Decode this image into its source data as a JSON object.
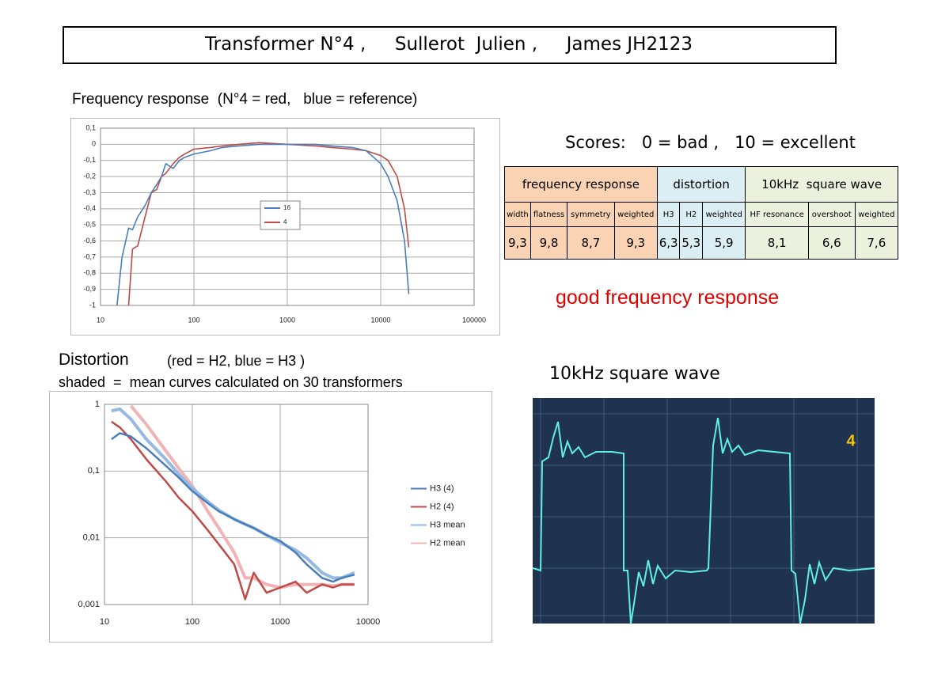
{
  "title": "Transformer N°4 ,     Sullerot  Julien ,     James JH2123",
  "chart_data": [
    {
      "type": "line",
      "title": "Frequency response  (N°4 = red,   blue = reference)",
      "x": [
        15,
        17,
        20,
        22,
        25,
        30,
        35,
        40,
        45,
        50,
        60,
        70,
        80,
        100,
        150,
        200,
        300,
        500,
        1000,
        2000,
        3000,
        5000,
        7000,
        10000,
        12000,
        15000,
        18000,
        20000
      ],
      "series": [
        {
          "name": "16",
          "color": "#4a7ebb",
          "values": [
            -1,
            -0.7,
            -0.52,
            -0.53,
            -0.45,
            -0.38,
            -0.3,
            -0.25,
            -0.2,
            -0.12,
            -0.15,
            -0.1,
            -0.08,
            -0.06,
            -0.04,
            -0.02,
            -0.01,
            0,
            0,
            0,
            -0.01,
            -0.02,
            -0.04,
            -0.12,
            -0.2,
            -0.35,
            -0.6,
            -0.93
          ]
        },
        {
          "name": "4",
          "color": "#be4b48",
          "values": [
            null,
            null,
            -1,
            -0.65,
            -0.63,
            -0.45,
            -0.3,
            -0.28,
            -0.2,
            -0.18,
            -0.12,
            -0.08,
            -0.06,
            -0.03,
            -0.02,
            -0.01,
            0,
            0.01,
            0,
            -0.01,
            -0.02,
            -0.03,
            -0.04,
            -0.07,
            -0.1,
            -0.2,
            -0.4,
            -0.64
          ]
        }
      ],
      "xlog": true,
      "xlim": [
        10,
        100000
      ],
      "xticks": [
        10,
        100,
        1000,
        10000,
        100000
      ],
      "ylim": [
        -1,
        0.1
      ],
      "yticks": [
        {
          "value": 0.1,
          "label": "0,1"
        },
        0,
        {
          "value": -0.1,
          "label": "-0,1"
        },
        {
          "value": -0.2,
          "label": "-0,2"
        },
        {
          "value": -0.3,
          "label": "-0,3"
        },
        {
          "value": -0.4,
          "label": "-0,4"
        },
        {
          "value": -0.5,
          "label": "-0,5"
        },
        {
          "value": -0.6,
          "label": "-0,6"
        },
        {
          "value": -0.7,
          "label": "-0,7"
        },
        {
          "value": -0.8,
          "label": "-0,8"
        },
        {
          "value": -0.9,
          "label": "-0,9"
        },
        -1
      ],
      "grid": true,
      "legend": "center"
    },
    {
      "type": "line",
      "title": "Distortion",
      "subtitle": "(red = H2, blue = H3 )",
      "annotation": "shaded  =  mean curves calculated on 30 transformers",
      "x": [
        12,
        15,
        20,
        30,
        50,
        70,
        100,
        150,
        200,
        300,
        400,
        500,
        700,
        1000,
        1500,
        2000,
        3000,
        4000,
        5000,
        7000
      ],
      "series": [
        {
          "name": "H3 (4)",
          "color": "#4a7ebb",
          "values": [
            0.3,
            0.37,
            0.33,
            0.22,
            0.12,
            0.08,
            0.05,
            0.033,
            0.025,
            0.019,
            0.016,
            0.014,
            0.011,
            0.009,
            0.006,
            0.004,
            0.0025,
            0.0022,
            0.0025,
            0.0028
          ]
        },
        {
          "name": "H2 (4)",
          "color": "#be4b48",
          "values": [
            0.55,
            0.45,
            0.3,
            0.15,
            0.07,
            0.04,
            0.025,
            0.013,
            0.008,
            0.004,
            0.0012,
            0.003,
            0.0015,
            0.0018,
            0.0022,
            0.0015,
            0.002,
            0.0018,
            0.002,
            0.002
          ]
        },
        {
          "name": "H3 mean",
          "color": "#95b9e3",
          "values": [
            0.8,
            0.85,
            0.6,
            0.3,
            0.15,
            0.09,
            0.055,
            0.035,
            0.026,
            0.019,
            0.016,
            0.014,
            0.011,
            0.0085,
            0.0065,
            0.005,
            0.003,
            0.0025,
            0.0025,
            0.003
          ]
        },
        {
          "name": "H2 mean",
          "color": "#f0b4b6",
          "values": [
            null,
            null,
            0.95,
            0.5,
            0.2,
            0.11,
            0.06,
            0.025,
            0.014,
            0.006,
            0.0025,
            0.0025,
            0.002,
            0.0018,
            0.002,
            0.002,
            0.002,
            0.0019,
            0.002,
            0.002
          ]
        }
      ],
      "xlog": true,
      "xlim": [
        10,
        10000
      ],
      "xticks": [
        10,
        100,
        1000,
        10000
      ],
      "ylog": true,
      "ylim": [
        0.001,
        1
      ],
      "yticks": [
        {
          "value": 0.001,
          "label": "0,001"
        },
        {
          "value": 0.01,
          "label": "0,01"
        },
        {
          "value": 0.1,
          "label": "0,1"
        },
        1
      ],
      "grid": true,
      "legend": "right"
    }
  ],
  "scores": {
    "caption": "Scores:   0 = bad ,   10 = excellent",
    "groups": [
      {
        "label": "frequency response",
        "color": "#f9d3b4",
        "columns": [
          "width",
          "flatness",
          "symmetry",
          "weighted"
        ],
        "values": [
          "9,3",
          "9,8",
          "8,7",
          "9,3"
        ]
      },
      {
        "label": "distortion",
        "color": "#dbeef4",
        "columns": [
          "H3",
          "H2",
          "weighted"
        ],
        "values": [
          "6,3",
          "5,3",
          "5,9"
        ]
      },
      {
        "label": "10kHz  square wave",
        "color": "#ebf1dd",
        "columns": [
          "HF resonance",
          "overshoot",
          "weighted"
        ],
        "values": [
          "8,1",
          "6,6",
          "7,6"
        ]
      }
    ]
  },
  "verdict": "good frequency response",
  "scope": {
    "caption": "10kHz square wave",
    "label": "4"
  }
}
